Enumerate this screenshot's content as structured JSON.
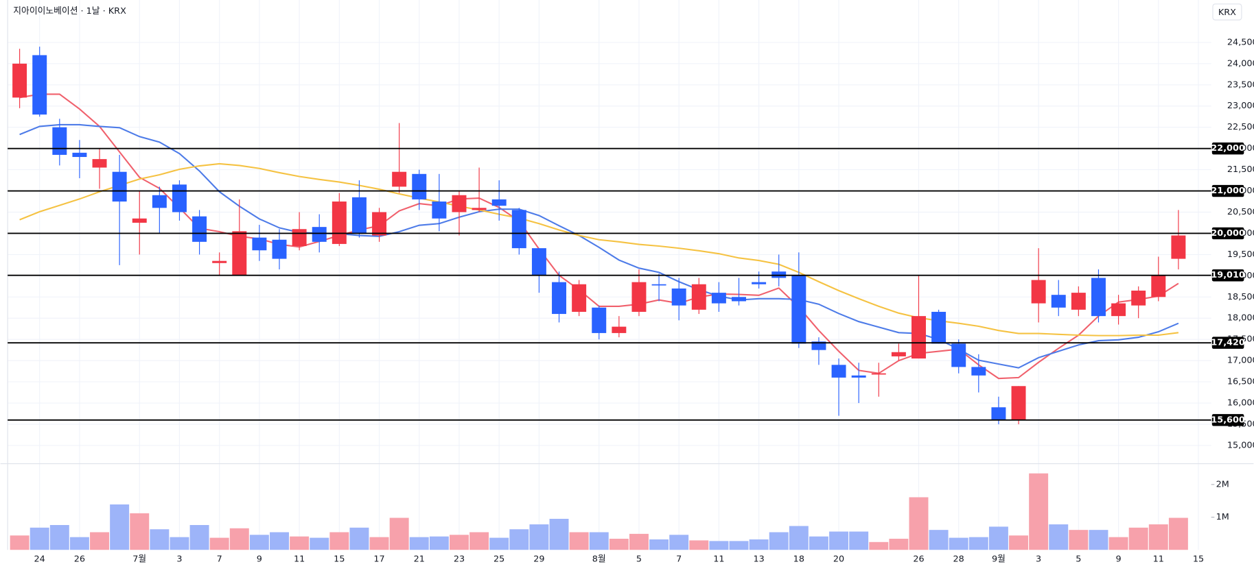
{
  "chart_data": {
    "type": "candlestick",
    "title": "지아이이노베이션 · 1날 · KRX",
    "currency_button": "KRX",
    "categories": [
      null,
      "24",
      null,
      "26",
      null,
      null,
      "7월",
      null,
      "3",
      null,
      "7",
      null,
      "9",
      null,
      "11",
      null,
      "15",
      null,
      "17",
      null,
      "21",
      null,
      "23",
      null,
      "25",
      null,
      "29",
      null,
      null,
      "8월",
      null,
      "5",
      null,
      "7",
      null,
      "11",
      null,
      "13",
      null,
      "18",
      null,
      "20",
      null,
      null,
      null,
      "26",
      null,
      "28",
      null,
      "9월",
      null,
      "3",
      null,
      "5",
      null,
      "9",
      null,
      "11",
      null,
      "15"
    ],
    "open": [
      23200,
      24200,
      22500,
      21900,
      21550,
      21450,
      20250,
      20900,
      21150,
      20400,
      19300,
      19000,
      19900,
      19850,
      19700,
      20150,
      19750,
      20850,
      19950,
      21100,
      21400,
      20750,
      20500,
      20550,
      20800,
      20550,
      19650,
      18850,
      18150,
      18250,
      17650,
      18150,
      18800,
      18700,
      18200,
      18600,
      18500,
      18850,
      19100,
      19000,
      17450,
      16900,
      16650,
      16680,
      17100,
      17050,
      18150,
      17400,
      16850,
      15900,
      15600,
      18350,
      18550,
      18200,
      18950,
      18050,
      18300,
      18500,
      19400,
      null
    ],
    "high": [
      24350,
      24400,
      22700,
      22200,
      22000,
      21850,
      21000,
      21100,
      21250,
      20550,
      19550,
      20800,
      20200,
      20100,
      20500,
      20450,
      20950,
      21250,
      20600,
      22600,
      21500,
      21400,
      21000,
      21550,
      21250,
      20600,
      19650,
      19100,
      18900,
      18300,
      18050,
      19150,
      19050,
      18950,
      18950,
      18850,
      18950,
      19100,
      19500,
      19550,
      17550,
      17050,
      16950,
      16950,
      17400,
      19000,
      18200,
      17500,
      17150,
      16150,
      16400,
      19650,
      18900,
      18750,
      19150,
      18550,
      18750,
      19450,
      20550,
      null
    ],
    "low": [
      22950,
      22750,
      21600,
      21300,
      21050,
      19250,
      19500,
      20000,
      20300,
      19500,
      19000,
      19000,
      19350,
      19150,
      19600,
      19550,
      19700,
      19900,
      19800,
      20950,
      20550,
      20050,
      19950,
      20500,
      20300,
      19500,
      18600,
      17900,
      18050,
      17500,
      17550,
      18050,
      18400,
      17950,
      18100,
      18150,
      18300,
      18700,
      18750,
      17300,
      16900,
      15700,
      16000,
      16150,
      17000,
      17050,
      17400,
      16700,
      16250,
      15500,
      15500,
      17900,
      18050,
      18050,
      17900,
      17850,
      18000,
      18400,
      19150,
      null
    ],
    "close": [
      24000,
      22800,
      21850,
      21800,
      21750,
      20750,
      20350,
      20600,
      20500,
      19800,
      19350,
      20050,
      19600,
      19400,
      20100,
      19800,
      20750,
      20000,
      20500,
      21450,
      20800,
      20350,
      20900,
      20600,
      20650,
      19650,
      19000,
      18100,
      18800,
      17650,
      17800,
      18850,
      18800,
      18300,
      18800,
      18350,
      18400,
      18800,
      18950,
      17400,
      17250,
      16600,
      16600,
      16700,
      17200,
      18050,
      17400,
      16850,
      16650,
      15600,
      16400,
      18900,
      18250,
      18600,
      18050,
      18350,
      18650,
      19000,
      19950,
      null
    ],
    "up_color": "#f23645",
    "down_color": "#2962ff",
    "ylim": [
      14590,
      25500
    ],
    "yticks": [
      {
        "value": 15000,
        "label": "15,000"
      },
      {
        "value": 15500,
        "label": "15,500"
      },
      {
        "value": 16000,
        "label": "16,000"
      },
      {
        "value": 16500,
        "label": "16,500"
      },
      {
        "value": 17000,
        "label": "17,000"
      },
      {
        "value": 17500,
        "label": "17,500"
      },
      {
        "value": 18000,
        "label": "18,000"
      },
      {
        "value": 18500,
        "label": "18,500"
      },
      {
        "value": 19000,
        "label": "19,000"
      },
      {
        "value": 19500,
        "label": "19,500"
      },
      {
        "value": 20000,
        "label": "20,000"
      },
      {
        "value": 20500,
        "label": "20,500"
      },
      {
        "value": 21000,
        "label": "21,000"
      },
      {
        "value": 21500,
        "label": "21,500"
      },
      {
        "value": 22000,
        "label": "22,000"
      },
      {
        "value": 22500,
        "label": "22,500"
      },
      {
        "value": 23000,
        "label": "23,000"
      },
      {
        "value": 23500,
        "label": "23,500"
      },
      {
        "value": 24000,
        "label": "24,000"
      },
      {
        "value": 24500,
        "label": "24,500"
      }
    ],
    "grid": true,
    "levels": [
      {
        "value": 22000,
        "label": "22,000"
      },
      {
        "value": 21000,
        "label": "21,000"
      },
      {
        "value": 20000,
        "label": "20,000"
      },
      {
        "value": 19010,
        "label": "19,010"
      },
      {
        "value": 17420,
        "label": "17,420"
      },
      {
        "value": 15600,
        "label": "15,600"
      }
    ],
    "ma": [
      {
        "color": "#f0606c",
        "values": [
          23200,
          23280,
          23280,
          22930,
          22520,
          21920,
          21320,
          21060,
          20600,
          20120,
          20040,
          19930,
          19870,
          19740,
          19680,
          19810,
          19950,
          20080,
          20180,
          20530,
          20700,
          20650,
          20810,
          20830,
          20610,
          20290,
          19630,
          19010,
          18670,
          18280,
          18280,
          18330,
          18430,
          18350,
          18500,
          18570,
          18560,
          18540,
          18710,
          18260,
          17710,
          17220,
          16770,
          16700,
          17000,
          17170,
          17220,
          17270,
          16900,
          16580,
          16600,
          16960,
          17290,
          17600,
          18050,
          18380,
          18440,
          18520,
          18820,
          null
        ]
      },
      {
        "color": "#4d7be8",
        "values": [
          22330,
          22520,
          22560,
          22560,
          22520,
          22490,
          22280,
          22150,
          21880,
          21470,
          20980,
          20640,
          20340,
          20130,
          20020,
          20000,
          19990,
          19950,
          19930,
          20040,
          20190,
          20230,
          20380,
          20510,
          20570,
          20570,
          20420,
          20180,
          19950,
          19670,
          19370,
          19180,
          19080,
          18860,
          18670,
          18520,
          18430,
          18460,
          18460,
          18440,
          18330,
          18110,
          17920,
          17790,
          17660,
          17640,
          17500,
          17270,
          17010,
          16920,
          16830,
          17070,
          17220,
          17370,
          17470,
          17490,
          17550,
          17680,
          17880,
          null
        ]
      },
      {
        "color": "#f5c242",
        "values": [
          20320,
          20510,
          20660,
          20810,
          20980,
          21130,
          21280,
          21380,
          21510,
          21590,
          21640,
          21600,
          21530,
          21430,
          21340,
          21270,
          21210,
          21130,
          21040,
          20930,
          20830,
          20740,
          20640,
          20550,
          20450,
          20360,
          20230,
          20080,
          19950,
          19850,
          19800,
          19740,
          19700,
          19650,
          19590,
          19520,
          19420,
          19360,
          19270,
          19080,
          18860,
          18650,
          18460,
          18280,
          18120,
          18010,
          17940,
          17880,
          17810,
          17710,
          17640,
          17640,
          17620,
          17600,
          17590,
          17590,
          17600,
          17600,
          17660,
          null
        ]
      }
    ],
    "volume": {
      "values": [
        440000,
        680000,
        760000,
        390000,
        540000,
        1390000,
        1120000,
        630000,
        390000,
        760000,
        370000,
        660000,
        460000,
        540000,
        410000,
        370000,
        540000,
        680000,
        390000,
        980000,
        390000,
        410000,
        460000,
        540000,
        370000,
        630000,
        780000,
        950000,
        540000,
        540000,
        340000,
        490000,
        320000,
        460000,
        290000,
        270000,
        270000,
        320000,
        540000,
        730000,
        410000,
        560000,
        560000,
        240000,
        340000,
        1610000,
        610000,
        370000,
        390000,
        710000,
        440000,
        2340000,
        780000,
        610000,
        610000,
        390000,
        680000,
        780000,
        980000,
        null
      ],
      "up_color": "#f7a1ab",
      "down_color": "#9db4f9",
      "ylim": [
        0,
        2540000
      ],
      "yticks": [
        {
          "value": 1000000,
          "label": "1M"
        },
        {
          "value": 2000000,
          "label": "2M"
        }
      ]
    }
  }
}
